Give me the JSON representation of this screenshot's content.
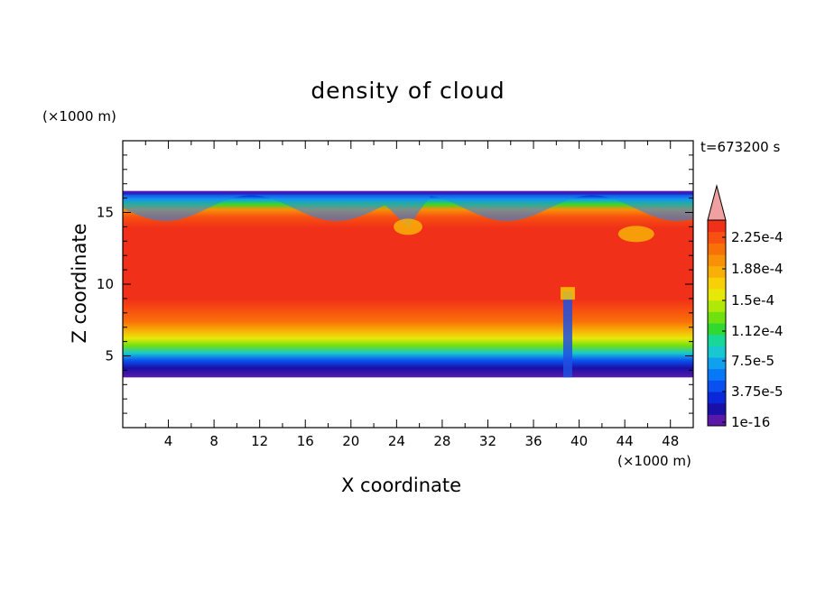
{
  "chart_data": {
    "type": "heatmap",
    "title": "density of cloud",
    "xlabel": "X coordinate",
    "ylabel": "Z coordinate",
    "x_unit": "(×1000 m)",
    "y_unit": "(×1000 m)",
    "time_label": "t=673200 s",
    "xlim": [
      0,
      50
    ],
    "ylim": [
      0,
      20
    ],
    "x_ticks": [
      "4",
      "8",
      "12",
      "16",
      "20",
      "24",
      "28",
      "32",
      "36",
      "40",
      "44",
      "48"
    ],
    "y_ticks": [
      "5",
      "10",
      "15"
    ],
    "x_tick_values": [
      4,
      8,
      12,
      16,
      20,
      24,
      28,
      32,
      36,
      40,
      44,
      48
    ],
    "y_tick_values": [
      5,
      10,
      15
    ],
    "colorbar": {
      "labels": [
        "2.25e-4",
        "1.88e-4",
        "1.5e-4",
        "1.12e-4",
        "7.5e-5",
        "3.75e-5",
        "1e-16"
      ],
      "label_values": [
        0.000225,
        0.000188,
        0.00015,
        0.000112,
        7.5e-05,
        3.75e-05,
        1e-16
      ],
      "colors": [
        "#5a18a8",
        "#1a10a8",
        "#0a28d8",
        "#0a50f0",
        "#0878f8",
        "#10a0f0",
        "#18c8d0",
        "#18d898",
        "#30d830",
        "#70e010",
        "#b0e808",
        "#e8e808",
        "#f8d008",
        "#f8b008",
        "#f89008",
        "#f87008",
        "#f85010",
        "#f03018"
      ],
      "extend_color": "#f0a0a0"
    },
    "cloud_layer": {
      "base_z": 3.5,
      "top_z": 16.5,
      "core_z": [
        6.5,
        14.5
      ],
      "features": [
        {
          "x": 25,
          "z": 14,
          "note": "dip in cloud top"
        },
        {
          "x": 39,
          "z": 6,
          "note": "low-density updraft column"
        },
        {
          "x": 45,
          "z": 13.5,
          "note": "eddy near cloud top"
        }
      ]
    }
  }
}
